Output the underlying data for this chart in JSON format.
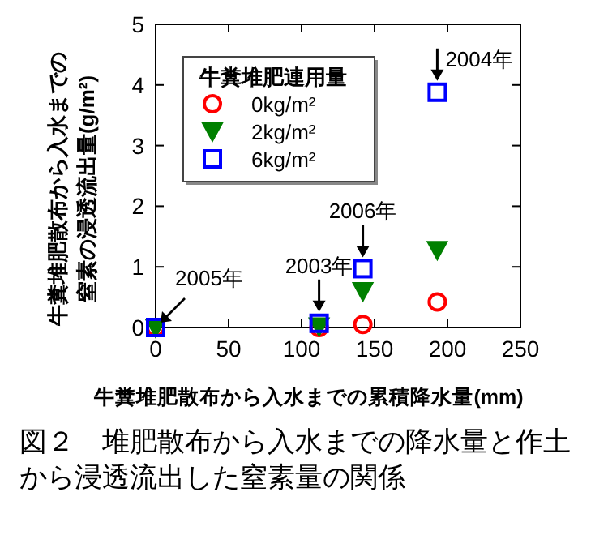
{
  "chart_data": {
    "type": "scatter",
    "xlabel": "牛糞堆肥散布から入水までの累積降水量(mm)",
    "ylabel": "牛糞堆肥散布から入水までの窒素の浸透流出量(g/m²)",
    "legend_title": "牛糞堆肥連用量",
    "legend": "top left",
    "x": [
      0,
      112,
      142,
      193
    ],
    "series": [
      {
        "name": "0kg/m²",
        "color": "#ff0000",
        "marker": "circle",
        "values": [
          0,
          0,
          0.05,
          0.42
        ]
      },
      {
        "name": "2kg/m²",
        "color": "#008000",
        "marker": "triangle",
        "values": [
          0,
          0.02,
          0.6,
          1.28
        ]
      },
      {
        "name": "6kg/m²",
        "color": "#0000ff",
        "marker": "square",
        "values": [
          0,
          0.07,
          0.97,
          3.88
        ]
      }
    ],
    "xlim": [
      0,
      250
    ],
    "xticks": [
      0,
      50,
      100,
      150,
      200,
      250
    ],
    "ylim": [
      0,
      5
    ],
    "yticks": [
      0,
      1,
      2,
      3,
      4,
      5
    ],
    "grid": false,
    "annotations": [
      {
        "text": "2005年",
        "x": 0,
        "y": 0
      },
      {
        "text": "2003年",
        "x": 112,
        "y": 0.07
      },
      {
        "text": "2006年",
        "x": 142,
        "y": 0.97
      },
      {
        "text": "2004年",
        "x": 193,
        "y": 3.88
      },
      "図２　堆肥散布から入水までの降水量と作土から浸透流出した窒素量の関係"
    ]
  }
}
